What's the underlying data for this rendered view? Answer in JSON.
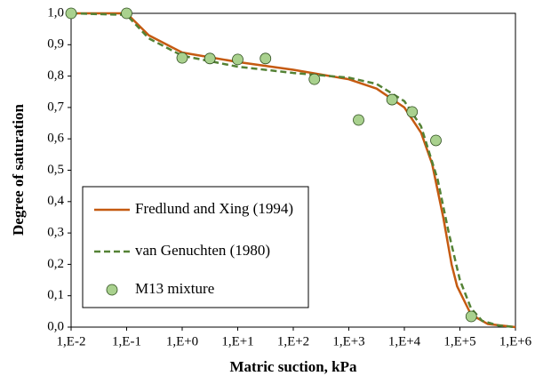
{
  "chart_data": {
    "type": "line",
    "x_label": "Matric suction, kPa",
    "y_label": "Degree of saturation",
    "xscale": "log",
    "xlim": [
      0.01,
      1000000
    ],
    "xticks": [
      {
        "value": 0.01,
        "label": "1,E-2"
      },
      {
        "value": 0.1,
        "label": "1,E-1"
      },
      {
        "value": 1,
        "label": "1,E+0"
      },
      {
        "value": 10,
        "label": "1,E+1"
      },
      {
        "value": 100,
        "label": "1,E+2"
      },
      {
        "value": 1000,
        "label": "1,E+3"
      },
      {
        "value": 10000,
        "label": "1,E+4"
      },
      {
        "value": 100000,
        "label": "1,E+5"
      },
      {
        "value": 1000000,
        "label": "1,E+6"
      }
    ],
    "ylim": [
      0,
      1
    ],
    "yticks": [
      {
        "value": 0,
        "label": "0,0"
      },
      {
        "value": 0.1,
        "label": "0,1"
      },
      {
        "value": 0.2,
        "label": "0,2"
      },
      {
        "value": 0.3,
        "label": "0,3"
      },
      {
        "value": 0.4,
        "label": "0,4"
      },
      {
        "value": 0.5,
        "label": "0,5"
      },
      {
        "value": 0.6,
        "label": "0,6"
      },
      {
        "value": 0.7,
        "label": "0,7"
      },
      {
        "value": 0.8,
        "label": "0,8"
      },
      {
        "value": 0.9,
        "label": "0,9"
      },
      {
        "value": 1,
        "label": "1,0"
      }
    ],
    "grid": false,
    "legend": "lower left",
    "series": [
      {
        "name": "Fredlund and Xing (1994)",
        "color": "#c55a11",
        "style": "solid",
        "x": [
          0.01,
          0.1,
          0.2512,
          1,
          10,
          100,
          1000,
          3162,
          10000,
          19953,
          31623,
          50119,
          70795,
          89125,
          158489,
          316228,
          1000000
        ],
        "values": [
          1.0,
          1.0,
          0.93,
          0.875,
          0.845,
          0.82,
          0.79,
          0.76,
          0.7,
          0.62,
          0.52,
          0.35,
          0.2,
          0.13,
          0.04,
          0.01,
          0.0
        ]
      },
      {
        "name": "van Genuchten (1980)",
        "color": "#548235",
        "style": "dashed",
        "x": [
          0.01,
          0.1,
          0.2512,
          1,
          10,
          100,
          1000,
          3162,
          10000,
          19953,
          39811,
          63096,
          100000,
          158489,
          251189,
          501187,
          1000000
        ],
        "values": [
          1.0,
          0.995,
          0.92,
          0.865,
          0.83,
          0.81,
          0.795,
          0.775,
          0.72,
          0.64,
          0.47,
          0.3,
          0.15,
          0.06,
          0.02,
          0.005,
          0.0
        ]
      },
      {
        "name": "M13 mixture",
        "color": "#a9d18e",
        "style": "marker",
        "x": [
          0.01,
          0.1,
          1,
          3.16,
          10,
          31.6,
          240,
          1500,
          6000,
          13800,
          37000,
          160000
        ],
        "values": [
          1.0,
          1.0,
          0.858,
          0.856,
          0.853,
          0.856,
          0.79,
          0.66,
          0.725,
          0.686,
          0.595,
          0.034
        ]
      }
    ]
  }
}
